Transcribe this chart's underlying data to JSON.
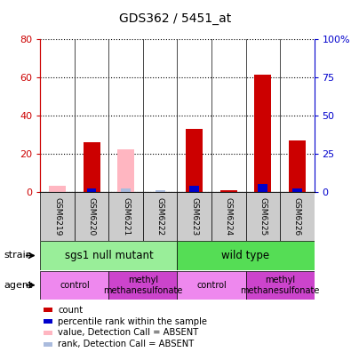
{
  "title": "GDS362 / 5451_at",
  "samples": [
    "GSM6219",
    "GSM6220",
    "GSM6221",
    "GSM6222",
    "GSM6223",
    "GSM6224",
    "GSM6225",
    "GSM6226"
  ],
  "red_bars": [
    0,
    26,
    0,
    0,
    33,
    1,
    61,
    27
  ],
  "blue_bars": [
    0,
    2,
    0,
    0,
    3,
    0,
    4,
    2
  ],
  "pink_bars": [
    3,
    0,
    22,
    0,
    0,
    0,
    0,
    0
  ],
  "lightblue_bars": [
    0,
    0,
    2,
    1,
    0,
    0,
    0,
    0
  ],
  "ylim_left": [
    0,
    80
  ],
  "ylim_right": [
    0,
    100
  ],
  "yticks_left": [
    0,
    20,
    40,
    60,
    80
  ],
  "ytick_labels_left": [
    "0",
    "20",
    "40",
    "60",
    "80"
  ],
  "yticks_right": [
    0,
    25,
    50,
    75,
    100
  ],
  "ytick_labels_right": [
    "0",
    "25",
    "50",
    "75",
    "100%"
  ],
  "strain_groups": [
    {
      "label": "sgs1 null mutant",
      "start": 0,
      "end": 4,
      "color": "#99EE99"
    },
    {
      "label": "wild type",
      "start": 4,
      "end": 8,
      "color": "#55DD55"
    }
  ],
  "agent_groups": [
    {
      "label": "control",
      "start": 0,
      "end": 2,
      "color": "#EE88EE"
    },
    {
      "label": "methyl\nmethanesulfonate",
      "start": 2,
      "end": 4,
      "color": "#CC44CC"
    },
    {
      "label": "control",
      "start": 4,
      "end": 6,
      "color": "#EE88EE"
    },
    {
      "label": "methyl\nmethanesulfonate",
      "start": 6,
      "end": 8,
      "color": "#CC44CC"
    }
  ],
  "legend_items": [
    {
      "color": "#CC0000",
      "label": "count"
    },
    {
      "color": "#0000CC",
      "label": "percentile rank within the sample"
    },
    {
      "color": "#FFB6C1",
      "label": "value, Detection Call = ABSENT"
    },
    {
      "color": "#AABBDD",
      "label": "rank, Detection Call = ABSENT"
    }
  ],
  "bar_width": 0.5,
  "left_axis_color": "#CC0000",
  "right_axis_color": "#0000CC",
  "sample_label_color": "#CCCCCC",
  "grid_color": "black"
}
